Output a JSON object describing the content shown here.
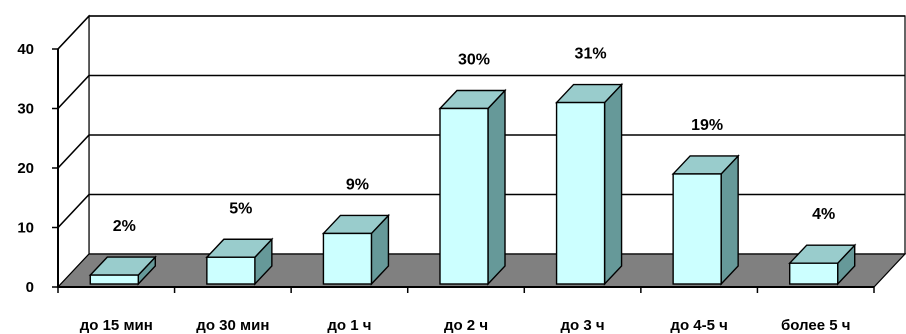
{
  "chart_data": {
    "type": "bar",
    "style": "3d",
    "categories": [
      "до 15 мин",
      "до 30 мин",
      "до 1 ч",
      "до 2 ч",
      "до 3 ч",
      "до 4-5 ч",
      "более 5 ч"
    ],
    "values": [
      2,
      5,
      9,
      30,
      31,
      19,
      4
    ],
    "data_labels": [
      "2%",
      "5%",
      "9%",
      "30%",
      "31%",
      "19%",
      "4%"
    ],
    "ylim": [
      0,
      40
    ],
    "yticks": [
      0,
      10,
      20,
      30,
      40
    ],
    "ytick_labels": [
      "0",
      "10",
      "20",
      "30",
      "40"
    ],
    "grid": true,
    "legend": "none",
    "title": "",
    "xlabel": "",
    "ylabel": "",
    "colors": {
      "bar_front": "#ccffff",
      "bar_top": "#99cccc",
      "bar_side": "#669999",
      "floor": "#808080",
      "walls": "#ffffff",
      "gridline": "#000000"
    }
  }
}
